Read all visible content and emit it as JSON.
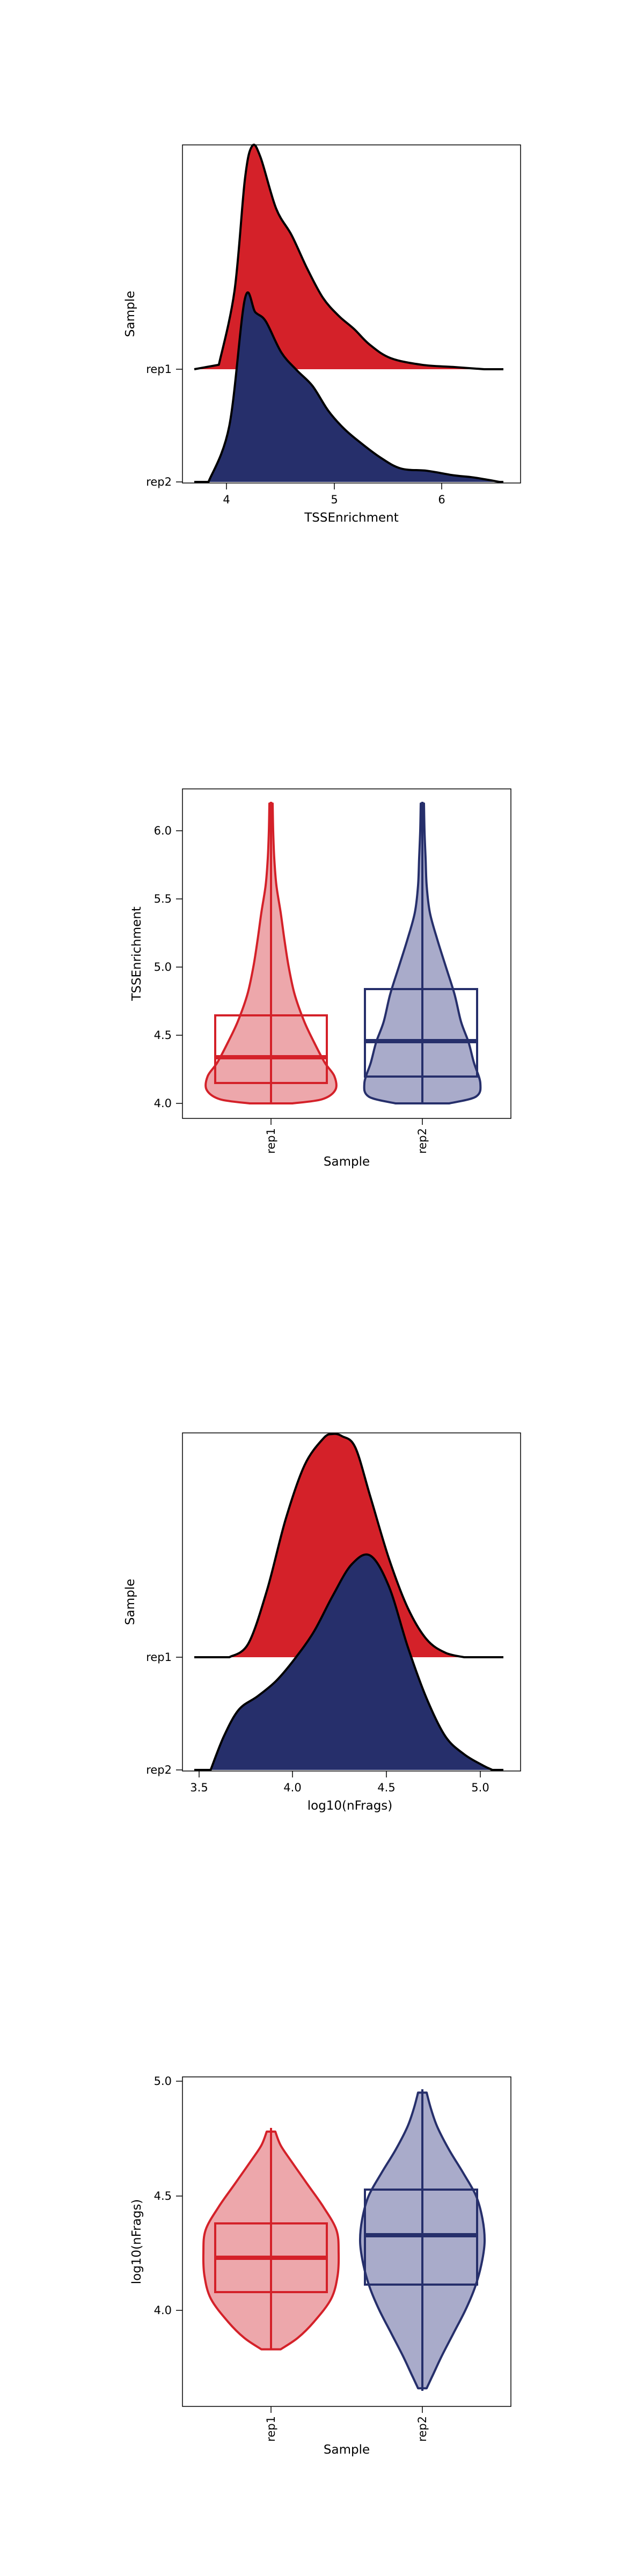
{
  "colors": {
    "rep1": "#d42129",
    "rep2": "#262f6b",
    "rep1_light": "#eda7ab",
    "rep2_light": "#a9abca"
  },
  "chart_data": [
    {
      "type": "ridgeline",
      "xlabel": "TSSEnrichment",
      "ylabel": "Sample",
      "xlim": [
        3.5,
        6.75
      ],
      "xticks": [
        "4",
        "5",
        "6"
      ],
      "samples": [
        "rep1",
        "rep2"
      ],
      "series": [
        {
          "name": "rep1",
          "x": [
            3.85,
            4.0,
            4.1,
            4.17,
            4.25,
            4.4,
            4.55,
            4.7,
            4.85,
            5.0,
            5.15,
            5.3,
            5.5,
            5.8,
            6.1,
            6.4
          ],
          "y": [
            0.02,
            0.35,
            0.85,
            1.0,
            0.95,
            0.72,
            0.6,
            0.45,
            0.32,
            0.24,
            0.18,
            0.11,
            0.05,
            0.02,
            0.01,
            0.0
          ]
        },
        {
          "name": "rep2",
          "x": [
            3.75,
            3.95,
            4.1,
            4.2,
            4.3,
            4.45,
            4.6,
            4.75,
            4.9,
            5.05,
            5.2,
            5.4,
            5.6,
            5.85,
            6.1,
            6.3,
            6.55
          ],
          "y": [
            0.0,
            0.25,
            0.82,
            0.76,
            0.72,
            0.58,
            0.5,
            0.43,
            0.32,
            0.24,
            0.18,
            0.11,
            0.06,
            0.05,
            0.03,
            0.02,
            0.0
          ]
        }
      ]
    },
    {
      "type": "violin_box",
      "xlabel": "Sample",
      "ylabel": "TSSEnrichment",
      "ylim": [
        3.88,
        6.3
      ],
      "yticks": [
        "4.0",
        "4.5",
        "5.0",
        "5.5",
        "6.0"
      ],
      "categories": [
        "rep1",
        "rep2"
      ],
      "boxes": [
        {
          "name": "rep1",
          "min": 4.0,
          "q1": 4.16,
          "median": 4.34,
          "q3": 4.66,
          "max": 6.2
        },
        {
          "name": "rep2",
          "min": 4.0,
          "q1": 4.2,
          "median": 4.45,
          "q3": 4.84,
          "max": 6.2
        }
      ]
    },
    {
      "type": "ridgeline",
      "xlabel": "log10(nFrags)",
      "ylabel": "Sample",
      "xlim": [
        3.4,
        5.2
      ],
      "xticks": [
        "3.5",
        "4.0",
        "4.5",
        "5.0"
      ],
      "samples": [
        "rep1",
        "rep2"
      ],
      "series": [
        {
          "name": "rep1",
          "x": [
            3.65,
            3.75,
            3.85,
            3.95,
            4.05,
            4.15,
            4.2,
            4.25,
            4.32,
            4.4,
            4.5,
            4.6,
            4.7,
            4.8,
            4.9
          ],
          "y": [
            0.0,
            0.06,
            0.3,
            0.62,
            0.86,
            0.98,
            1.0,
            0.99,
            0.94,
            0.72,
            0.44,
            0.22,
            0.08,
            0.02,
            0.0
          ]
        },
        {
          "name": "rep2",
          "x": [
            3.55,
            3.62,
            3.7,
            3.8,
            3.9,
            4.0,
            4.1,
            4.2,
            4.3,
            4.4,
            4.5,
            4.6,
            4.7,
            4.8,
            4.9,
            5.0,
            5.05
          ],
          "y": [
            0.0,
            0.15,
            0.27,
            0.33,
            0.4,
            0.5,
            0.62,
            0.78,
            0.92,
            0.96,
            0.82,
            0.55,
            0.32,
            0.15,
            0.07,
            0.02,
            0.0
          ]
        }
      ]
    },
    {
      "type": "violin_box",
      "xlabel": "Sample",
      "ylabel": "log10(nFrags)",
      "ylim": [
        3.58,
        5.02
      ],
      "yticks": [
        "4.0",
        "4.5",
        "5.0"
      ],
      "categories": [
        "rep1",
        "rep2"
      ],
      "boxes": [
        {
          "name": "rep1",
          "min": 3.83,
          "q1": 4.08,
          "median": 4.23,
          "q3": 4.38,
          "max": 4.78
        },
        {
          "name": "rep2",
          "min": 3.66,
          "q1": 4.11,
          "median": 4.33,
          "q3": 4.52,
          "max": 4.95
        }
      ]
    }
  ]
}
